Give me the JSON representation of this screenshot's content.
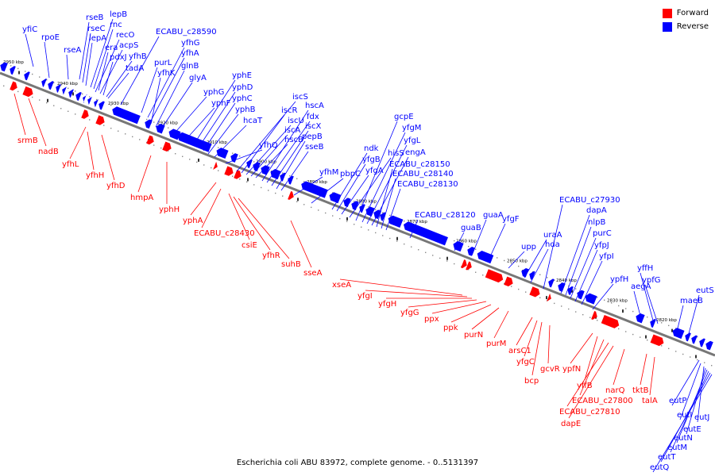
{
  "colors": {
    "forward": "#ff0000",
    "reverse": "#0000ff",
    "backbone": "#777777"
  },
  "legend": {
    "forward": "Forward",
    "reverse": "Reverse"
  },
  "caption": "Escherichia coli ABU 83972, complete genome. - 0..5131397",
  "ticks": [
    "2950 kbp",
    "2940 kbp",
    "2930 kbp",
    "2920 kbp",
    "2910 kbp",
    "2900 kbp",
    "2890 kbp",
    "2880 kbp",
    "2870 kbp",
    "2860 kbp",
    "2850 kbp",
    "2840 kbp",
    "2830 kbp",
    "2820 kbp"
  ],
  "reverse_genes": [
    "yfiC",
    "rpoE",
    "rseA",
    "rseB",
    "rseC",
    "lepA",
    "lepB",
    "rnc",
    "era",
    "recO",
    "acpS",
    "pdxJ",
    "yfhB",
    "tadA",
    "ECABU_c28590",
    "purL",
    "yfhG",
    "yfhA",
    "yfhK",
    "glnB",
    "glyA",
    "yphG",
    "yphF",
    "yphE",
    "yphD",
    "yphC",
    "yphB",
    "hcaT",
    "yfhQ",
    "iscS",
    "iscR",
    "iscU",
    "iscA",
    "hscB",
    "hscA",
    "fdx",
    "iscX",
    "pepB",
    "sseB",
    "yfhM",
    "pbpC",
    "ndk",
    "yfgB",
    "yfgA",
    "hisS",
    "gcpE",
    "yfgM",
    "yfgL",
    "engA",
    "ECABU_c28150",
    "ECABU_c28140",
    "ECABU_c28130",
    "ECABU_c28120",
    "guaB",
    "guaA",
    "yfgF",
    "upp",
    "uraA",
    "hda",
    "ECABU_c27930",
    "dapA",
    "nlpB",
    "purC",
    "yfpJ",
    "yfpI",
    "ypfH",
    "aegA",
    "yffH",
    "ypfG",
    "maeB",
    "eutS",
    "eutP",
    "eutI",
    "eutJ",
    "eutE",
    "eutN",
    "eutM",
    "eutT",
    "eutQ"
  ],
  "forward_genes": [
    "srmB",
    "nadB",
    "yfhL",
    "yfhH",
    "yfhD",
    "hmpA",
    "yphH",
    "yphA",
    "ECABU_c28430",
    "csiE",
    "yfhR",
    "suhB",
    "sseA",
    "xseA",
    "yfgI",
    "yfgH",
    "yfgG",
    "ppx",
    "ppk",
    "purN",
    "purM",
    "arsC1",
    "yfgC",
    "bcp",
    "gcvR",
    "ypfN",
    "yffB",
    "ECABU_c27800",
    "ECABU_c27810",
    "dapE",
    "narQ",
    "tktB",
    "talA"
  ]
}
